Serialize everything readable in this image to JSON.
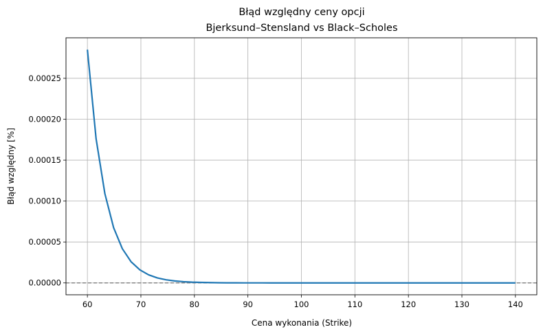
{
  "chart_data": {
    "type": "line",
    "title": "Błąd względny ceny opcji",
    "subtitle": "Bjerksund–Stensland vs Black–Scholes",
    "xlabel": "Cena wykonania (Strike)",
    "ylabel": "Błąd względny [%]",
    "xlim": [
      56,
      144
    ],
    "ylim": [
      -1.45e-05,
      0.0002995
    ],
    "x_ticks": [
      60,
      70,
      80,
      90,
      100,
      110,
      120,
      130,
      140
    ],
    "x_tick_labels": [
      "60",
      "70",
      "80",
      "90",
      "100",
      "110",
      "120",
      "130",
      "140"
    ],
    "y_ticks": [
      0,
      5e-05,
      0.0001,
      0.00015,
      0.0002,
      0.00025
    ],
    "y_tick_labels": [
      "0.00000",
      "0.00005",
      "0.00010",
      "0.00015",
      "0.00020",
      "0.00025"
    ],
    "grid": true,
    "reference_line": {
      "y": 0,
      "style": "dashed",
      "color": "#808080"
    },
    "series": [
      {
        "color": "#1f77b4",
        "x": [
          60,
          61.63,
          63.27,
          64.9,
          66.53,
          68.16,
          69.8,
          71.43,
          73.06,
          74.69,
          76.33,
          77.96,
          79.59,
          81.22,
          82.86,
          84.49,
          86.12,
          87.76,
          89.39,
          91.02,
          92.65,
          94.29,
          95.92,
          97.55,
          99.18,
          100.82,
          102.45,
          104.08,
          105.71,
          107.35,
          108.98,
          110.61,
          112.24,
          113.88,
          115.51,
          117.14,
          118.78,
          120.41,
          122.04,
          123.67,
          125.31,
          126.94,
          128.57,
          130.2,
          131.84,
          133.47,
          135.1,
          136.73,
          138.37,
          140
        ],
        "y": [
          0.000285,
          0.000176,
          0.000109,
          6.75e-05,
          4.18e-05,
          2.59e-05,
          1.6e-05,
          9.9e-06,
          6.1e-06,
          3.8e-06,
          2.4e-06,
          1.5e-06,
          9e-07,
          6e-07,
          4e-07,
          2e-07,
          1e-07,
          1e-07,
          5e-08,
          3e-08,
          2e-08,
          1e-08,
          0,
          0,
          0,
          0,
          0,
          0,
          0,
          0,
          0,
          0,
          0,
          0,
          0,
          0,
          0,
          0,
          0,
          0,
          0,
          0,
          0,
          0,
          0,
          0,
          0,
          0,
          0,
          0
        ]
      }
    ]
  }
}
